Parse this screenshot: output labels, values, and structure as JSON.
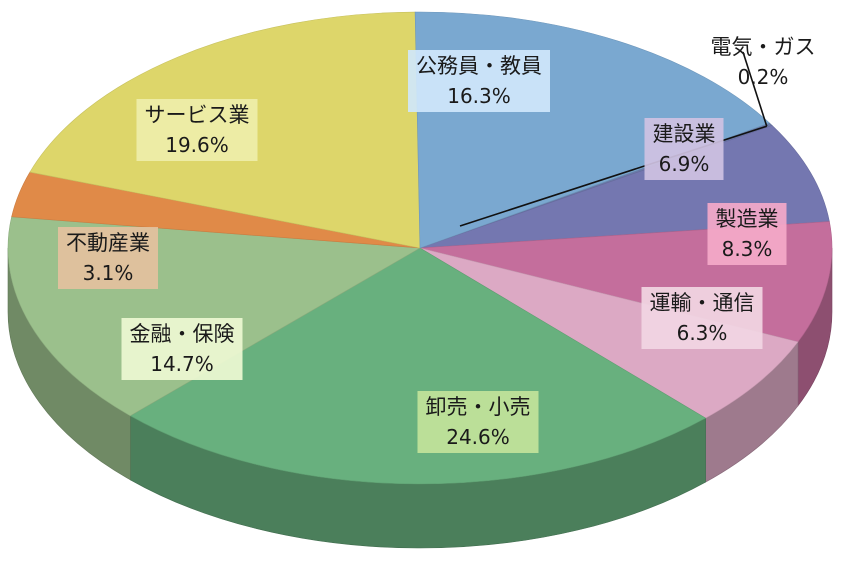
{
  "chart_data": {
    "type": "pie",
    "style": "3d",
    "title": "",
    "legend": "none",
    "slices": [
      {
        "label": "電気・ガス",
        "value": 0.2,
        "display": "0.2%",
        "color": "#6a7aa8"
      },
      {
        "label": "建設業",
        "value": 6.9,
        "display": "6.9%",
        "color": "#7477b0"
      },
      {
        "label": "製造業",
        "value": 8.3,
        "display": "8.3%",
        "color": "#c46e9c"
      },
      {
        "label": "運輸・通信",
        "value": 6.3,
        "display": "6.3%",
        "color": "#dca9c4"
      },
      {
        "label": "卸売・小売",
        "value": 24.6,
        "display": "24.6%",
        "color": "#68b07e"
      },
      {
        "label": "金融・保険",
        "value": 14.7,
        "display": "14.7%",
        "color": "#9bc08c"
      },
      {
        "label": "不動産業",
        "value": 3.1,
        "display": "3.1%",
        "color": "#e08a48"
      },
      {
        "label": "サービス業",
        "value": 19.6,
        "display": "19.6%",
        "color": "#ddd66a"
      },
      {
        "label": "公務員・教員",
        "value": 16.3,
        "display": "16.3%",
        "color": "#7aa8d0"
      }
    ]
  }
}
